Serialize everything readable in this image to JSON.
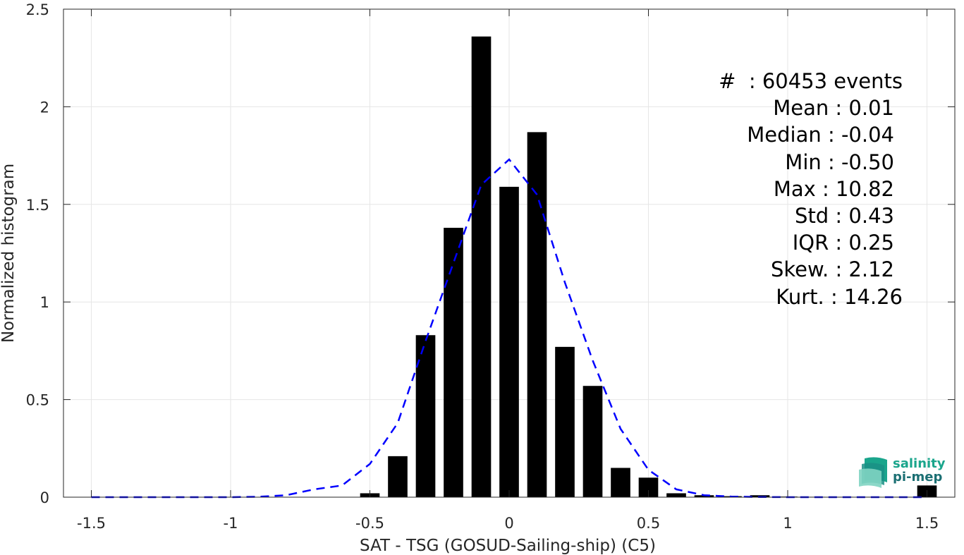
{
  "chart_data": {
    "type": "bar",
    "xlabel": "SAT - TSG (GOSUD-Sailing-ship) (C5)",
    "ylabel": "Normalized histogram",
    "xlim": [
      -1.6,
      1.6
    ],
    "ylim": [
      0,
      2.5
    ],
    "xticks": [
      -1.5,
      -1,
      -0.5,
      0,
      0.5,
      1,
      1.5
    ],
    "xtick_labels": [
      "-1.5",
      "-1",
      "-0.5",
      "0",
      "0.5",
      "1",
      "1.5"
    ],
    "yticks": [
      0,
      0.5,
      1,
      1.5,
      2,
      2.5
    ],
    "ytick_labels": [
      "0",
      "0.5",
      "1",
      "1.5",
      "2",
      "2.5"
    ],
    "grid": true,
    "bars": {
      "x": [
        -0.5,
        -0.4,
        -0.3,
        -0.2,
        -0.1,
        0.0,
        0.1,
        0.2,
        0.3,
        0.4,
        0.5,
        0.6,
        0.7,
        0.8,
        0.9,
        1.0,
        1.1,
        1.2,
        1.3,
        1.4,
        1.5
      ],
      "values": [
        0.02,
        0.21,
        0.83,
        1.38,
        2.36,
        1.59,
        1.87,
        0.77,
        0.57,
        0.15,
        0.1,
        0.02,
        0.01,
        0.005,
        0.01,
        0.003,
        0.002,
        0.002,
        0.002,
        0.002,
        0.06
      ],
      "width": 0.07,
      "color": "#000000"
    },
    "fit_curve": {
      "style": "dashed",
      "color": "#0000ff",
      "x": [
        -1.5,
        -1.4,
        -1.3,
        -1.2,
        -1.1,
        -1.0,
        -0.9,
        -0.8,
        -0.7,
        -0.6,
        -0.5,
        -0.4,
        -0.3,
        -0.2,
        -0.1,
        0.0,
        0.1,
        0.2,
        0.3,
        0.4,
        0.5,
        0.6,
        0.7,
        0.8,
        0.9,
        1.0,
        1.1,
        1.2,
        1.3,
        1.4,
        1.5
      ],
      "y": [
        0.0,
        0.0,
        0.0,
        0.0,
        0.0,
        0.0,
        0.002,
        0.01,
        0.04,
        0.06,
        0.17,
        0.38,
        0.8,
        1.2,
        1.6,
        1.73,
        1.55,
        1.1,
        0.7,
        0.35,
        0.14,
        0.04,
        0.01,
        0.003,
        0.001,
        0.0,
        0.0,
        0.0,
        0.0,
        0.0,
        0.0
      ]
    }
  },
  "stats": [
    "#  : 60453 events",
    "Mean : 0.01",
    "Median : -0.04",
    "Min : -0.50",
    "Max : 10.82",
    "Std : 0.43",
    "IQR : 0.25",
    "Skew. : 2.12",
    "Kurt. : 14.26"
  ],
  "logo": {
    "word1": "salinity",
    "word2": "pi-mep",
    "colors": {
      "primary": "#1aa58c",
      "secondary": "#1b6f73"
    }
  },
  "colors": {
    "axis": "#262626",
    "grid": "#e6e6e6"
  }
}
